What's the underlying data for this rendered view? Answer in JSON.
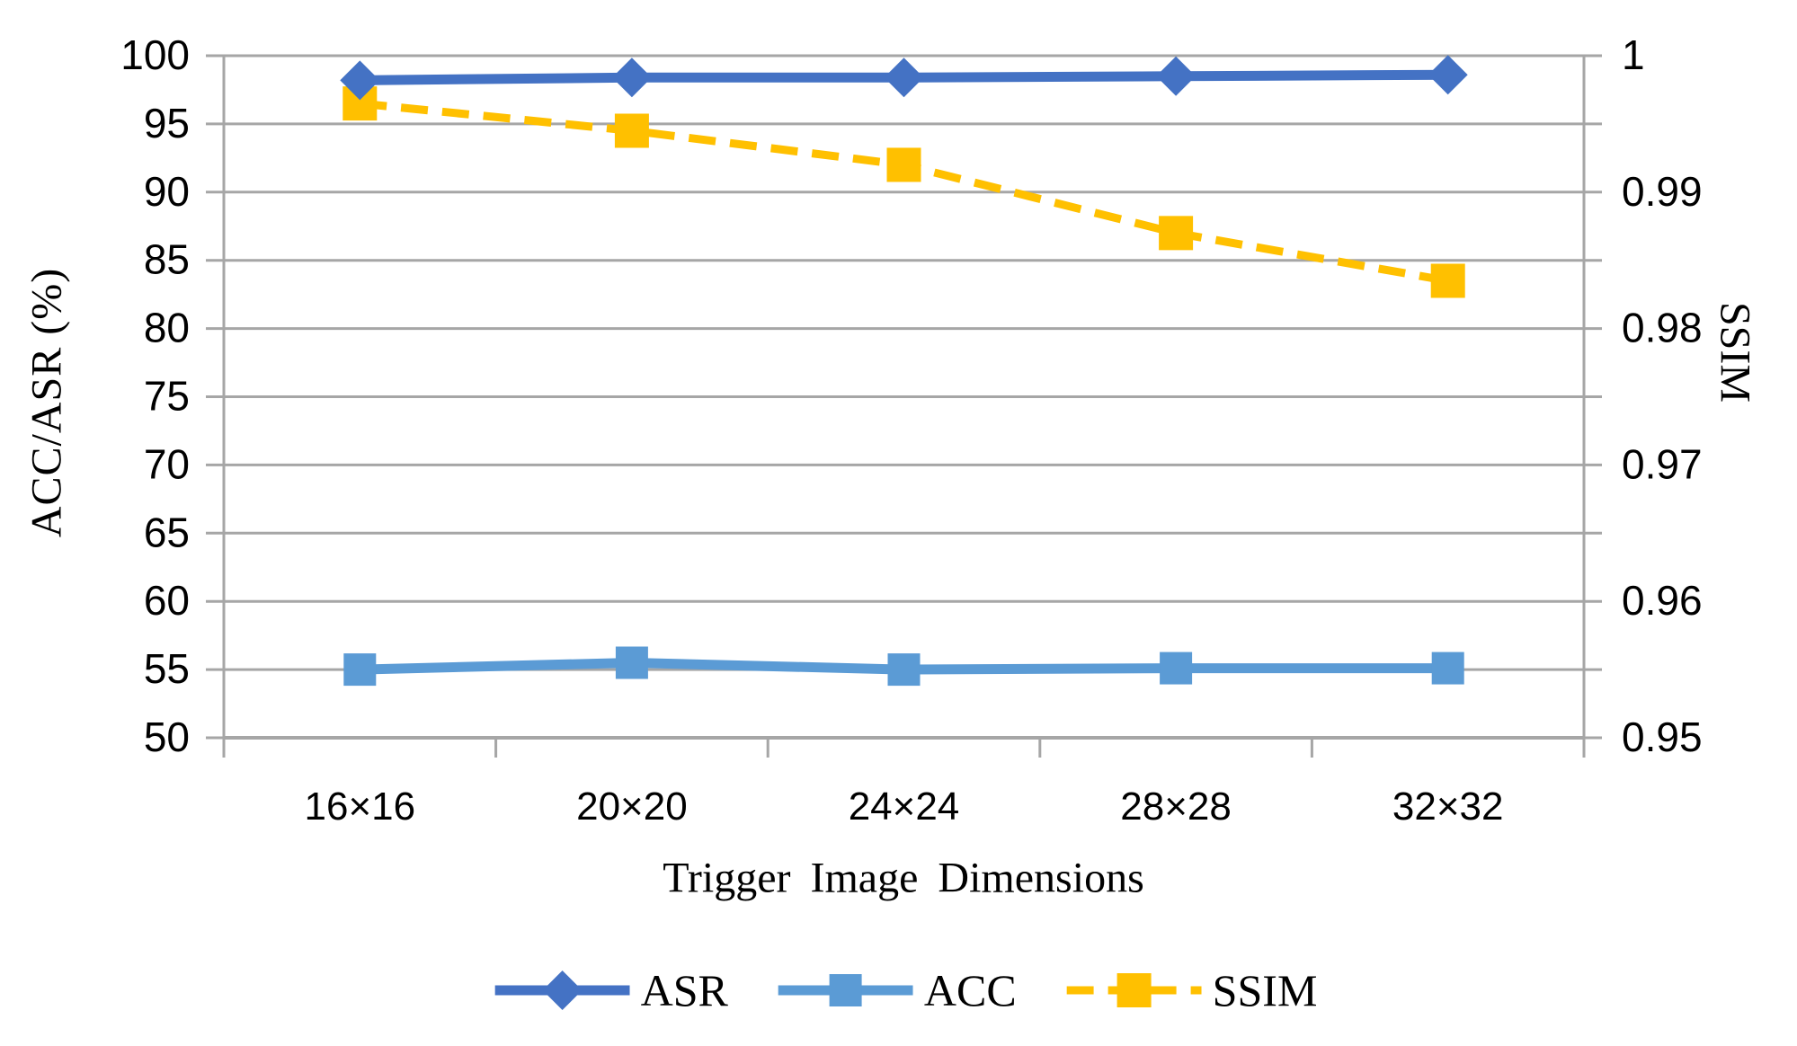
{
  "chart_data": {
    "type": "line",
    "title": "",
    "xlabel": "Trigger Image Dimensions",
    "categories": [
      "16×16",
      "20×20",
      "24×24",
      "28×28",
      "32×32"
    ],
    "series": [
      {
        "name": "ASR",
        "axis": "left",
        "values": [
          98.2,
          98.4,
          98.4,
          98.5,
          98.6
        ],
        "color": "#4472C4",
        "marker": "diamond",
        "dash": "solid"
      },
      {
        "name": "ACC",
        "axis": "left",
        "values": [
          55.0,
          55.5,
          55.0,
          55.1,
          55.1
        ],
        "color": "#5B9BD5",
        "marker": "square",
        "dash": "solid"
      },
      {
        "name": "SSIM",
        "axis": "right",
        "values": [
          0.9965,
          0.9945,
          0.992,
          0.987,
          0.9835
        ],
        "color": "#FFC000",
        "marker": "square",
        "dash": "dashed"
      }
    ],
    "left_axis": {
      "label": "ACC/ASR (%)",
      "min": 50,
      "max": 100,
      "step": 5,
      "ticks": [
        "100",
        "95",
        "90",
        "85",
        "80",
        "75",
        "70",
        "65",
        "60",
        "55",
        "50"
      ]
    },
    "right_axis": {
      "label": "SSIM",
      "min": 0.95,
      "max": 1,
      "step": 0.005,
      "ticks": [
        "1",
        "0.99",
        "0.98",
        "0.97",
        "0.96",
        "0.95"
      ]
    },
    "legend": {
      "position": "bottom",
      "entries": [
        "ASR",
        "ACC",
        "SSIM"
      ]
    },
    "grid": "horizontal",
    "gridline_color": "#A6A6A6",
    "axis_color": "#A6A6A6",
    "background_color": "#FFFFFF"
  }
}
